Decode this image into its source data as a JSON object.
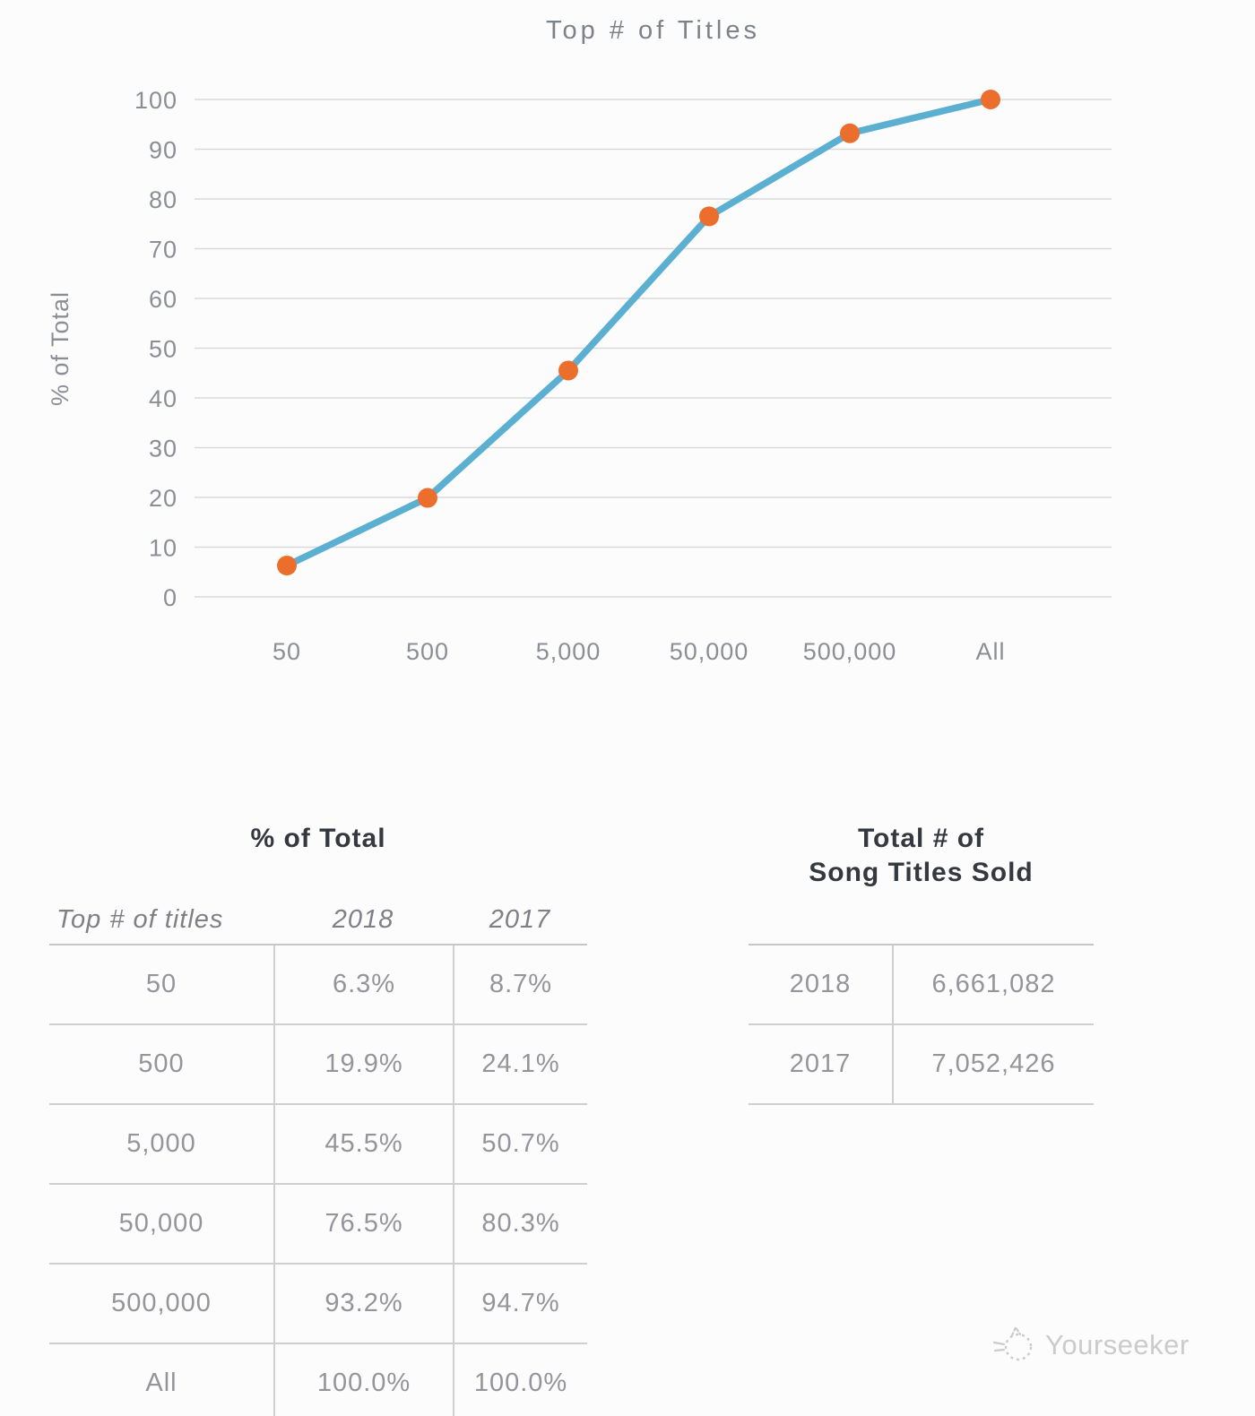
{
  "chart_data": {
    "type": "line",
    "title": "Top # of Titles",
    "xlabel": "",
    "ylabel": "% of Total",
    "categories": [
      "50",
      "500",
      "5,000",
      "50,000",
      "500,000",
      "All"
    ],
    "series": [
      {
        "name": "2018",
        "values": [
          6.3,
          19.9,
          45.5,
          76.5,
          93.2,
          100.0
        ]
      }
    ],
    "ylim": [
      0,
      100
    ],
    "ytick_step": 10,
    "grid": true,
    "legend": "none",
    "line_color": "#5bb0d2",
    "marker_color": "#ec6e2d",
    "grid_color": "#d9d9d9",
    "axis_text_color": "#8b8f95"
  },
  "pct_table": {
    "title": "% of Total",
    "headers": [
      "Top # of titles",
      "2018",
      "2017"
    ],
    "rows": [
      [
        "50",
        "6.3%",
        "8.7%"
      ],
      [
        "500",
        "19.9%",
        "24.1%"
      ],
      [
        "5,000",
        "45.5%",
        "50.7%"
      ],
      [
        "50,000",
        "76.5%",
        "80.3%"
      ],
      [
        "500,000",
        "93.2%",
        "94.7%"
      ],
      [
        "All",
        "100.0%",
        "100.0%"
      ]
    ]
  },
  "totals_table": {
    "title_line1": "Total # of",
    "title_line2": "Song Titles Sold",
    "rows": [
      [
        "2018",
        "6,661,082"
      ],
      [
        "2017",
        "7,052,426"
      ]
    ]
  },
  "watermark": {
    "brand": "Yourseeker"
  }
}
